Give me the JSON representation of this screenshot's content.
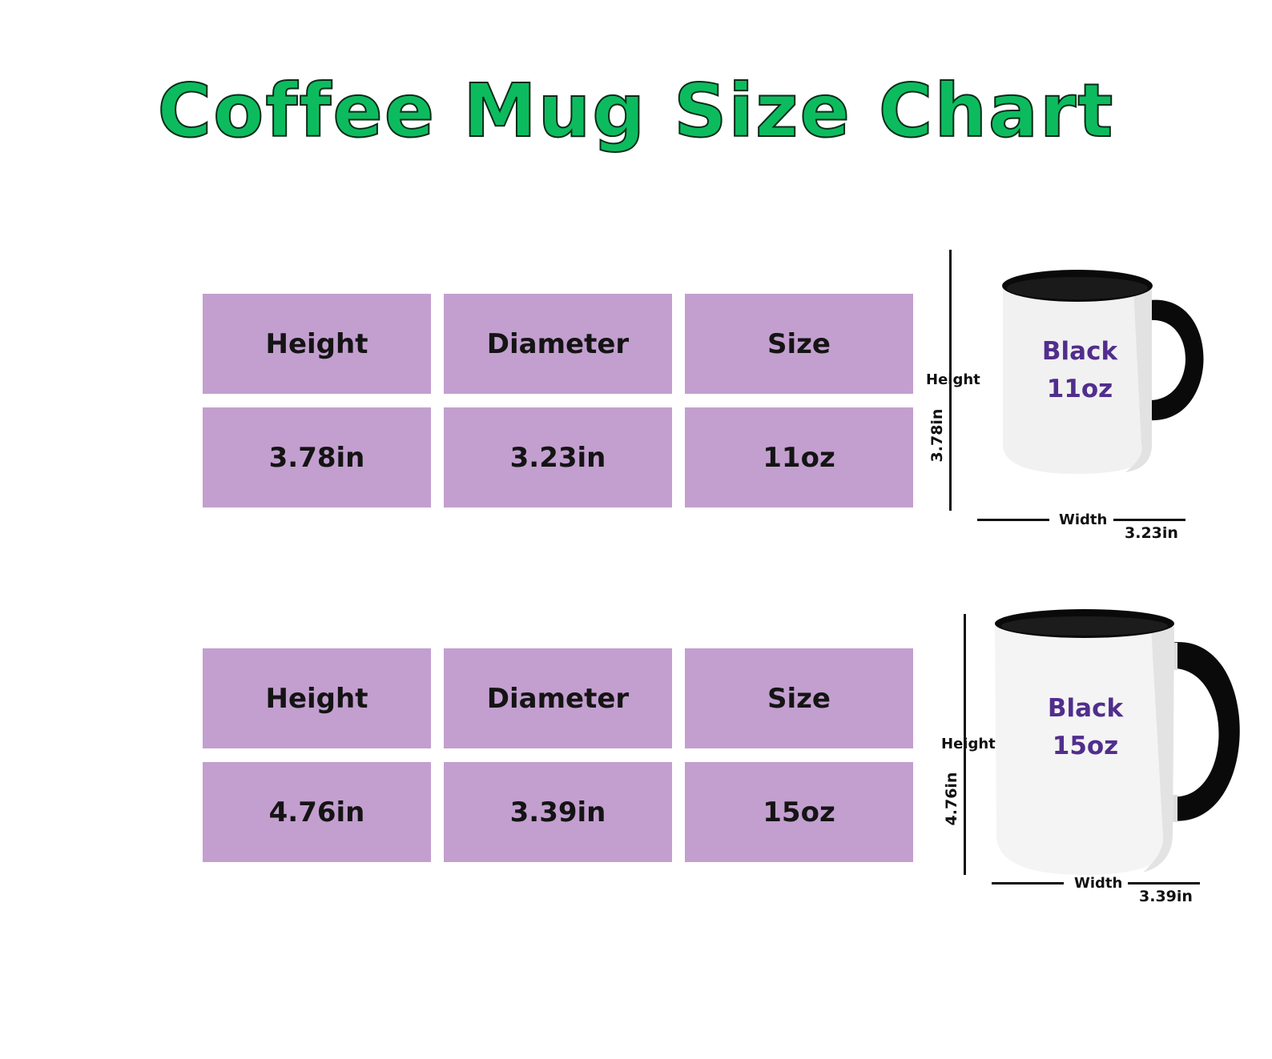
{
  "title": "Coffee Mug Size Chart",
  "colors": {
    "title_fill": "#0dbb5f",
    "cell_bg": "#c39fcf",
    "mug_label": "#512e8c",
    "mug_accent": "#000000"
  },
  "tables": [
    {
      "headers": [
        "Height",
        "Diameter",
        "Size"
      ],
      "values": [
        "3.78in",
        "3.23in",
        "11oz"
      ]
    },
    {
      "headers": [
        "Height",
        "Diameter",
        "Size"
      ],
      "values": [
        "4.76in",
        "3.39in",
        "15oz"
      ]
    }
  ],
  "mugs": [
    {
      "label_line1": "Black",
      "label_line2": "11oz",
      "height_label": "Height",
      "height_value": "3.78in",
      "width_label": "Width",
      "width_value": "3.23in"
    },
    {
      "label_line1": "Black",
      "label_line2": "15oz",
      "height_label": "Height",
      "height_value": "4.76in",
      "width_label": "Width",
      "width_value": "3.39in"
    }
  ]
}
